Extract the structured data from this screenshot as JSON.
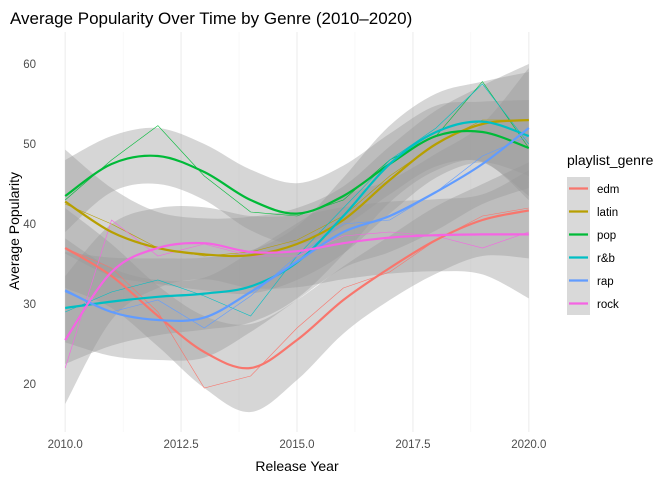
{
  "chart_data": {
    "type": "line",
    "title": "Average Popularity Over Time by Genre (2010–2020)",
    "xlabel": "Release Year",
    "ylabel": "Average Popularity",
    "xlim": [
      2009.5,
      2020.5
    ],
    "ylim": [
      14,
      64
    ],
    "x_ticks": [
      2010,
      2012.5,
      2015,
      2017.5,
      2020
    ],
    "x_tick_labels": [
      "2010.0",
      "2012.5",
      "2015.0",
      "2017.5",
      "2020.0"
    ],
    "y_ticks": [
      20,
      30,
      40,
      50,
      60
    ],
    "y_tick_labels": [
      "20",
      "30",
      "40",
      "50",
      "60"
    ],
    "grid": true,
    "legend": {
      "title": "playlist_genre",
      "position": "right"
    },
    "x": [
      2010,
      2011,
      2012,
      2013,
      2014,
      2015,
      2016,
      2017,
      2018,
      2019,
      2020
    ],
    "series": [
      {
        "name": "edm",
        "color": "#F8766D",
        "values": [
          37.0,
          34.5,
          29.0,
          19.5,
          21.0,
          27.0,
          32.0,
          34.0,
          38.0,
          41.0,
          42.0
        ],
        "smooth": [
          37.0,
          33.5,
          28.5,
          24.0,
          22.0,
          25.5,
          30.5,
          34.5,
          38.0,
          40.5,
          41.7
        ],
        "band": [
          5.0,
          4.0,
          3.8,
          4.5,
          5.5,
          5.0,
          4.2,
          4.0,
          4.2,
          4.5,
          6.0
        ]
      },
      {
        "name": "latin",
        "color": "#B79F00",
        "values": [
          42.5,
          40.0,
          37.0,
          36.0,
          36.5,
          38.0,
          41.0,
          46.0,
          50.0,
          53.0,
          53.0
        ],
        "smooth": [
          42.8,
          39.0,
          37.0,
          36.2,
          36.1,
          37.5,
          40.5,
          45.5,
          50.0,
          52.5,
          53.0
        ],
        "band": [
          6.5,
          5.5,
          4.5,
          4.5,
          4.8,
          4.5,
          4.2,
          4.2,
          4.2,
          4.8,
          7.0
        ]
      },
      {
        "name": "pop",
        "color": "#00BA38",
        "values": [
          43.0,
          48.0,
          52.3,
          46.0,
          41.5,
          41.0,
          43.0,
          48.0,
          51.0,
          57.8,
          49.5
        ],
        "smooth": [
          43.5,
          47.5,
          48.5,
          46.5,
          43.0,
          41.3,
          43.5,
          47.5,
          51.0,
          51.5,
          49.5
        ],
        "band": [
          4.5,
          3.5,
          3.5,
          3.5,
          3.8,
          3.8,
          3.8,
          3.8,
          3.8,
          3.8,
          6.0
        ]
      },
      {
        "name": "r&b",
        "color": "#00BFC4",
        "values": [
          29.0,
          31.5,
          33.0,
          31.0,
          28.5,
          36.0,
          42.0,
          48.0,
          52.0,
          57.5,
          50.0
        ],
        "smooth": [
          29.5,
          30.3,
          30.9,
          31.3,
          32.2,
          35.2,
          41.0,
          47.5,
          51.5,
          52.8,
          51.0
        ],
        "band": [
          7.0,
          5.5,
          4.8,
          4.5,
          4.5,
          4.5,
          4.8,
          4.8,
          4.8,
          5.0,
          8.0
        ]
      },
      {
        "name": "rap",
        "color": "#619CFF",
        "values": [
          31.5,
          29.0,
          30.5,
          27.0,
          31.0,
          36.0,
          40.0,
          40.5,
          44.0,
          48.5,
          51.0
        ],
        "smooth": [
          31.7,
          29.0,
          28.0,
          28.3,
          31.5,
          35.3,
          39.0,
          41.0,
          44.0,
          47.5,
          52.0
        ],
        "band": [
          6.5,
          5.5,
          5.0,
          5.0,
          5.0,
          4.8,
          4.5,
          4.5,
          4.8,
          5.0,
          7.5
        ]
      },
      {
        "name": "rock",
        "color": "#F564E3",
        "values": [
          22.0,
          40.5,
          36.0,
          37.5,
          36.0,
          36.0,
          38.5,
          39.0,
          38.5,
          37.0,
          39.0
        ],
        "smooth": [
          25.5,
          34.0,
          37.0,
          37.6,
          36.5,
          36.6,
          37.6,
          38.3,
          38.6,
          38.7,
          38.7
        ],
        "band": [
          8.0,
          6.0,
          5.0,
          4.5,
          4.5,
          4.5,
          4.5,
          4.5,
          4.5,
          5.0,
          8.0
        ]
      }
    ]
  }
}
